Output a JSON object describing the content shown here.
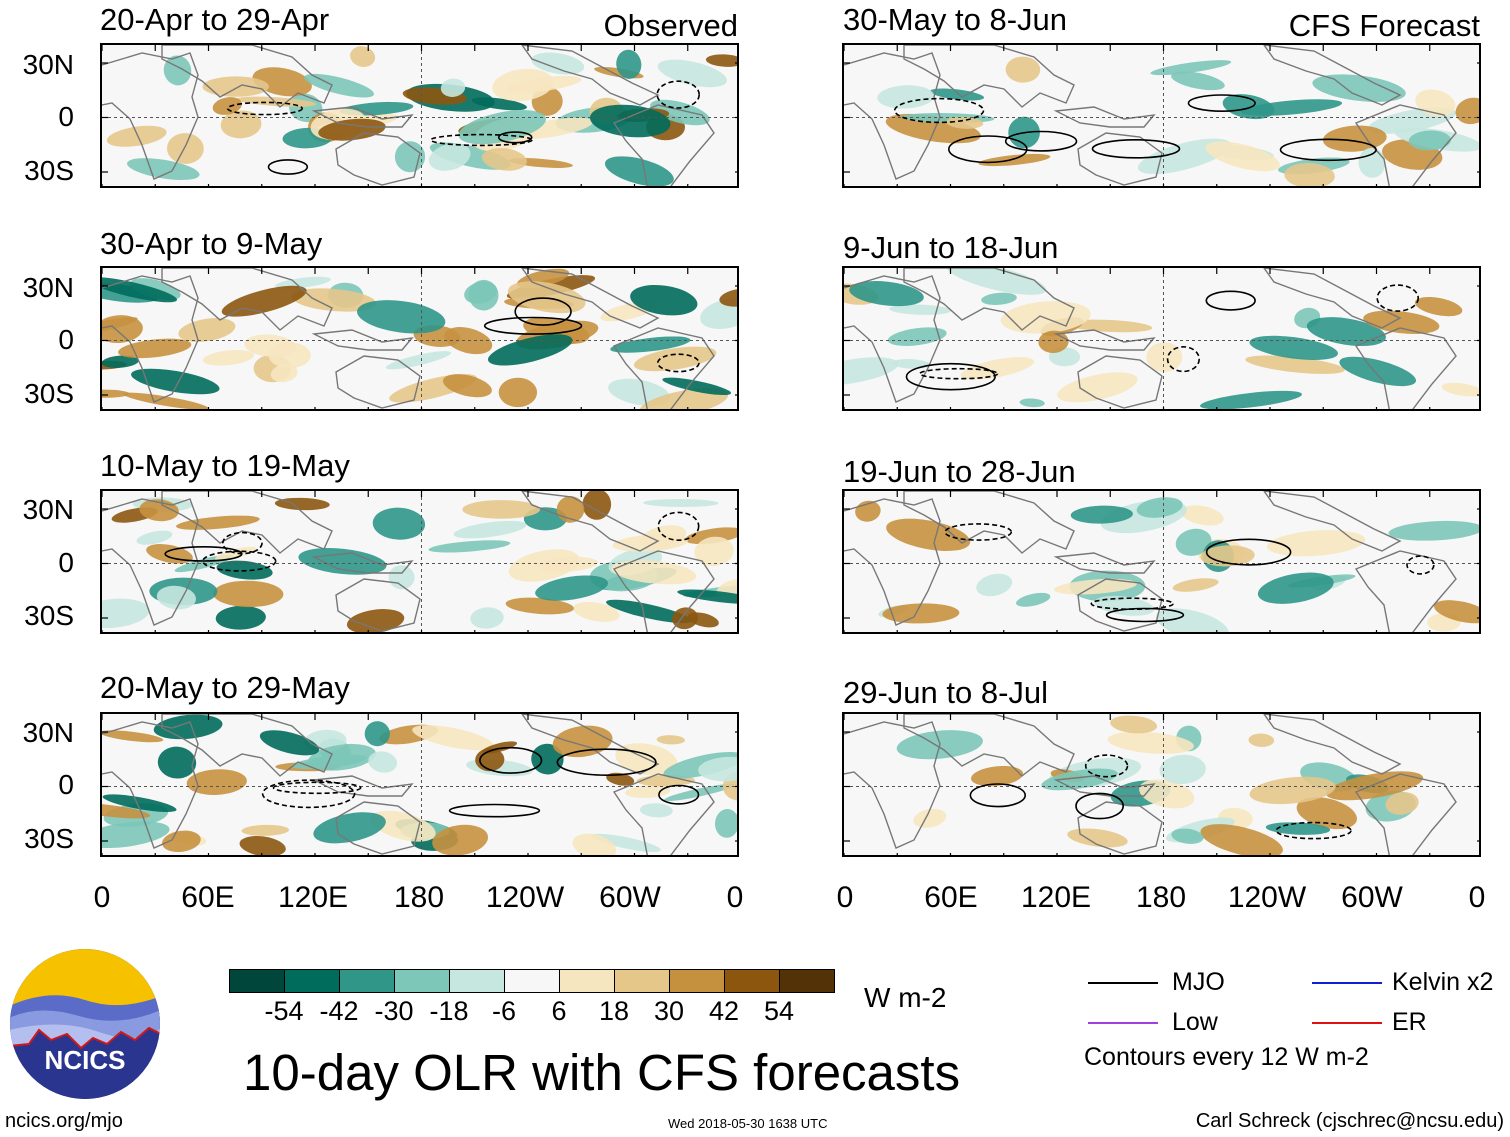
{
  "chart_data": {
    "type": "heatmap",
    "title": "10-day OLR with CFS forecasts",
    "units": "W m-2",
    "lat_ticks": [
      "30N",
      "0",
      "30S"
    ],
    "lon_ticks": [
      "0",
      "60E",
      "120E",
      "180",
      "120W",
      "60W",
      "0"
    ],
    "colorbar": {
      "levels": [
        "-54",
        "-42",
        "-30",
        "-18",
        "-6",
        "6",
        "18",
        "30",
        "42",
        "54"
      ],
      "colors": [
        "#00463a",
        "#006c5c",
        "#2f9688",
        "#7cc7b8",
        "#c5e7df",
        "#f7f7f7",
        "#f6e6c0",
        "#e4c789",
        "#c6913f",
        "#8c560f",
        "#533208"
      ]
    },
    "observed_label": "Observed",
    "forecast_label": "CFS Forecast",
    "panels": [
      {
        "id": "obs1",
        "period": "20-Apr to 29-Apr",
        "group": "observed"
      },
      {
        "id": "obs2",
        "period": "30-Apr to 9-May",
        "group": "observed"
      },
      {
        "id": "obs3",
        "period": "10-May to 19-May",
        "group": "observed"
      },
      {
        "id": "obs4",
        "period": "20-May to 29-May",
        "group": "observed"
      },
      {
        "id": "fc1",
        "period": "30-May to 8-Jun",
        "group": "forecast"
      },
      {
        "id": "fc2",
        "period": "9-Jun to 18-Jun",
        "group": "forecast"
      },
      {
        "id": "fc3",
        "period": "19-Jun to 28-Jun",
        "group": "forecast"
      },
      {
        "id": "fc4",
        "period": "29-Jun to 8-Jul",
        "group": "forecast"
      }
    ],
    "legend": [
      {
        "label": "MJO",
        "color": "#000000"
      },
      {
        "label": "Kelvin x2",
        "color": "#1020d0"
      },
      {
        "label": "Low",
        "color": "#a040e0"
      },
      {
        "label": "ER",
        "color": "#e01010"
      }
    ],
    "contour_note": "Contours every 12 W m-2"
  },
  "logo_text": "NCICS",
  "footer": {
    "url": "ncics.org/mjo",
    "date": "Wed 2018-05-30 1638 UTC",
    "credit": "Carl Schreck (cjschrec@ncsu.edu)"
  }
}
